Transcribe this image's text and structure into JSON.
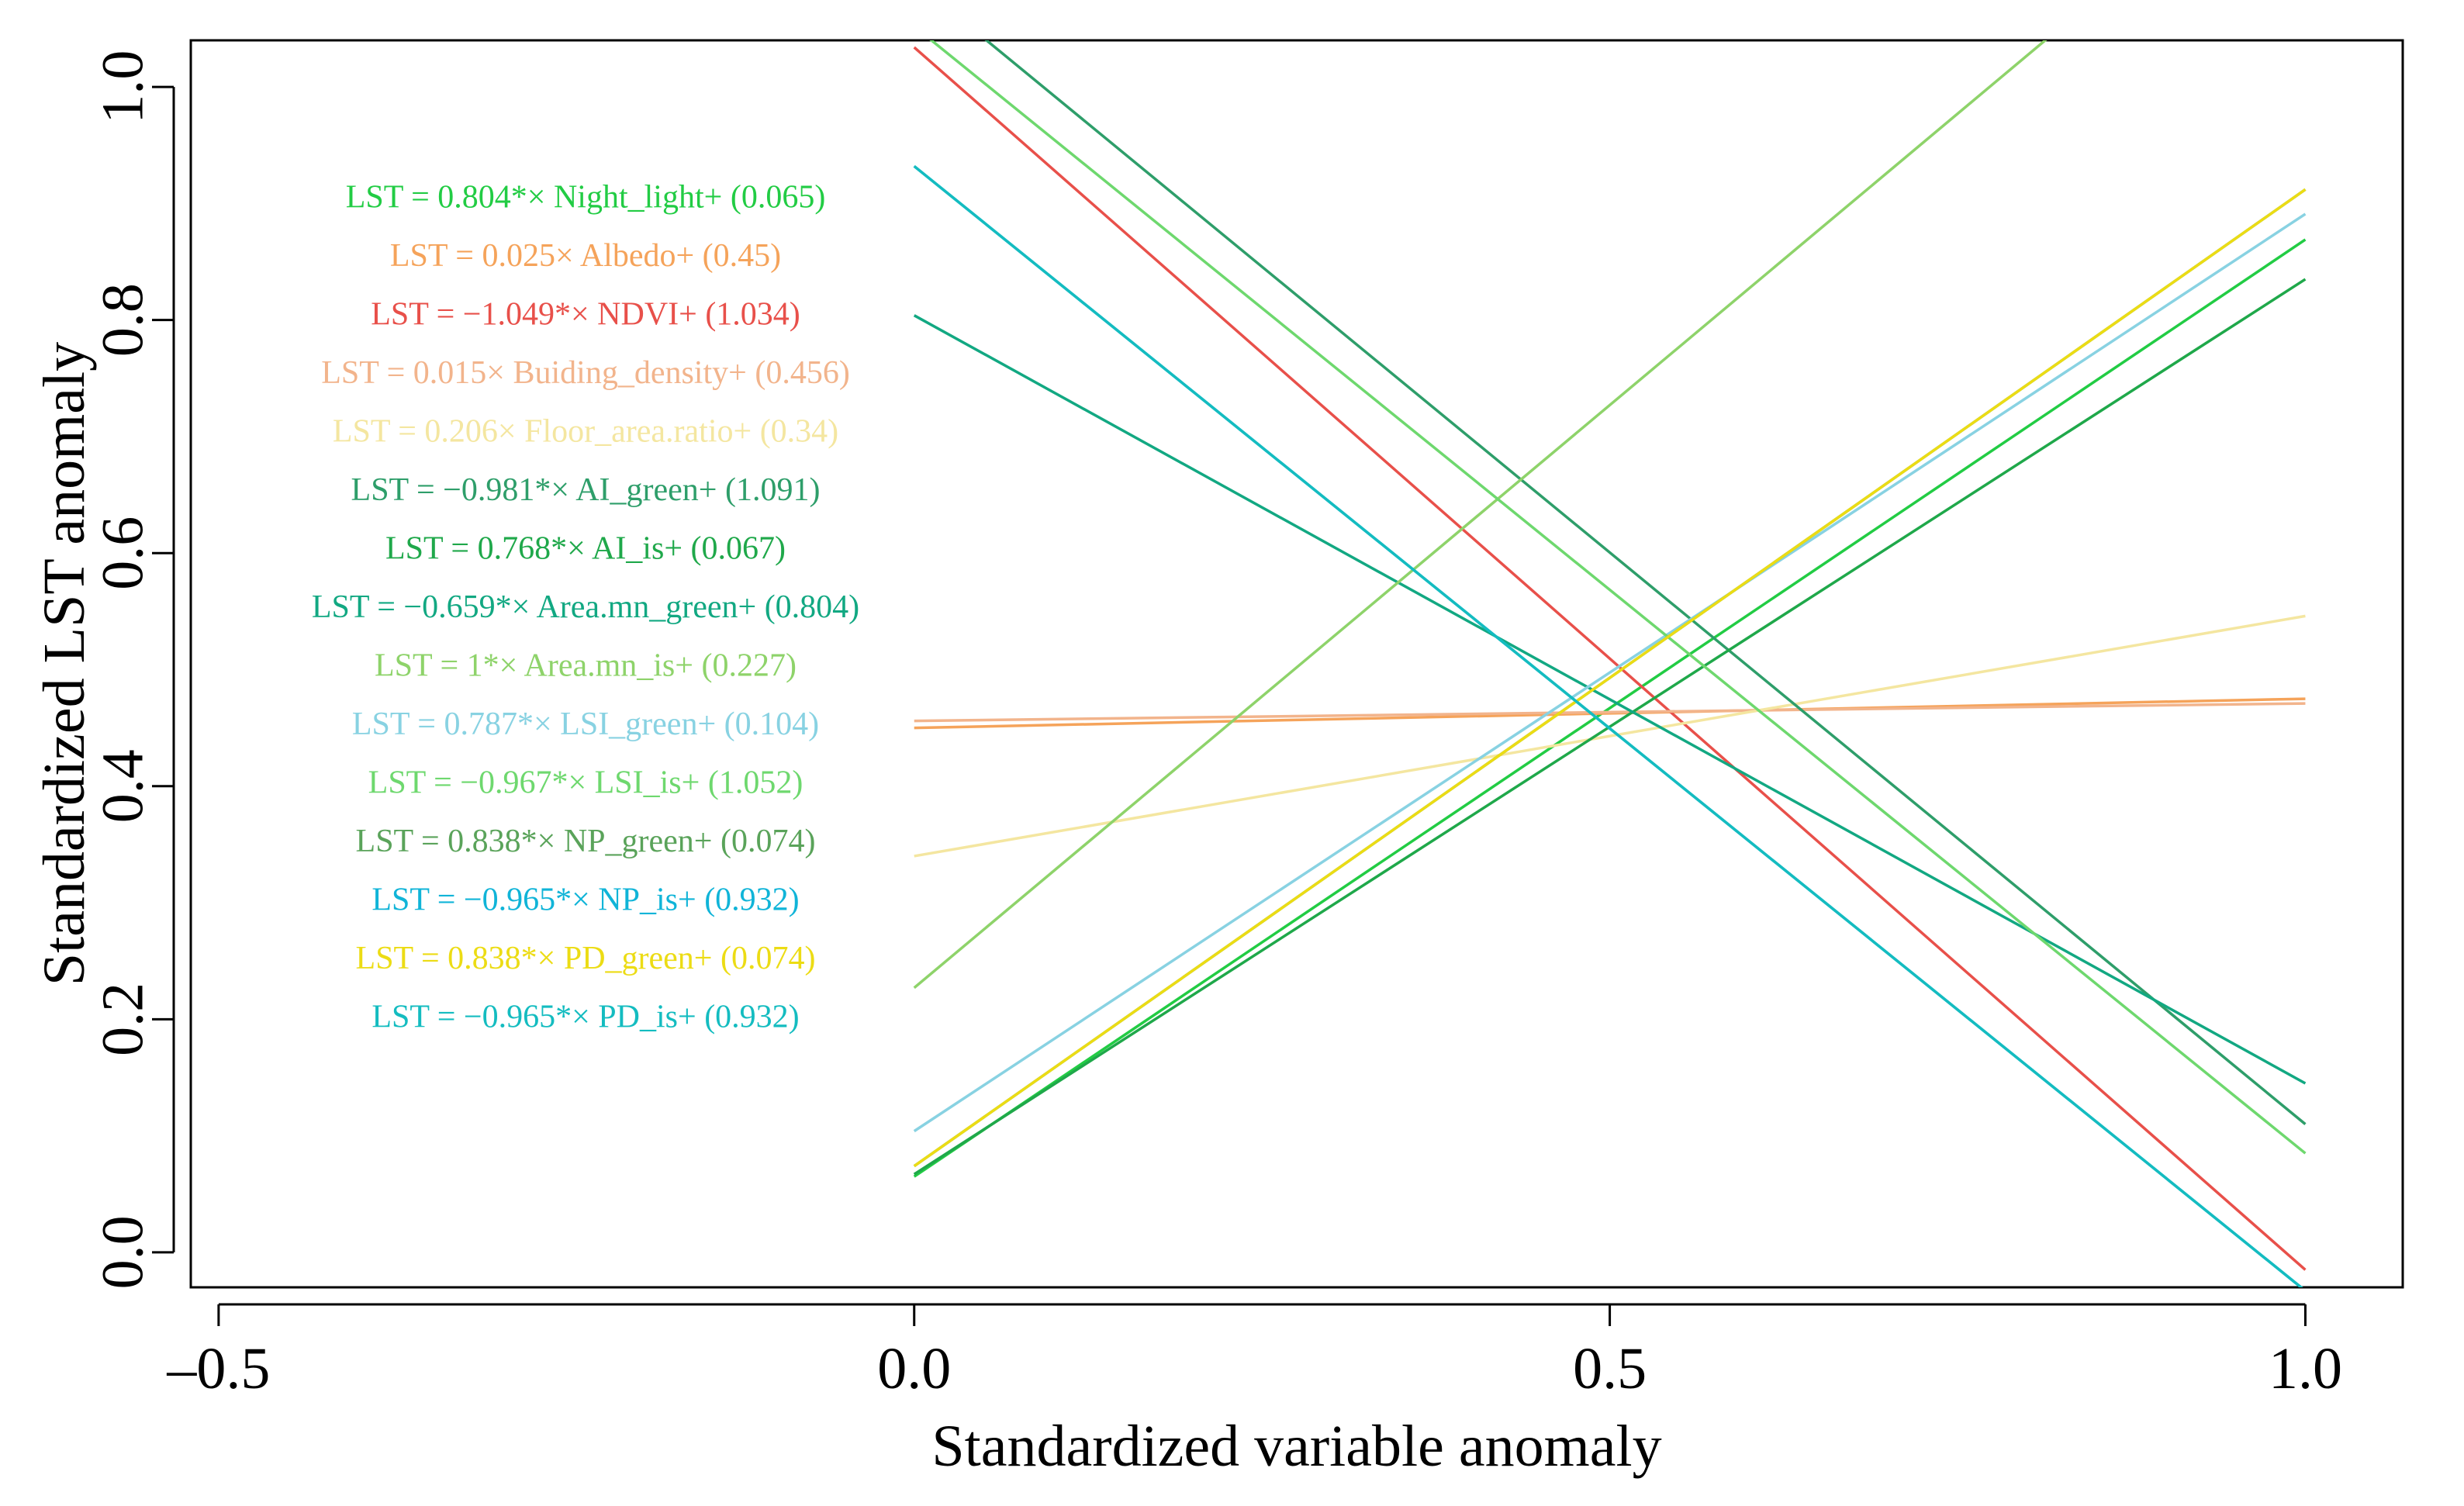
{
  "chart_data": {
    "type": "line",
    "title": "",
    "xlabel": "Standardized variable anomaly",
    "ylabel": "Standardized LST anomaly",
    "xlim": [
      -0.52,
      1.07
    ],
    "ylim": [
      -0.03,
      1.04
    ],
    "x_ticks": [
      -0.5,
      0.0,
      0.5,
      1.0
    ],
    "x_tick_labels": [
      "–0.5",
      "0.0",
      "0.5",
      "1.0"
    ],
    "y_ticks": [
      0.0,
      0.2,
      0.4,
      0.6,
      0.8,
      1.0
    ],
    "y_tick_labels": [
      "0.0",
      "0.2",
      "0.4",
      "0.6",
      "0.8",
      "1.0"
    ],
    "grid": false,
    "legend_placement": "left",
    "series": [
      {
        "equation": "LST = 0.804*× Night_light+ (0.065)",
        "slope": 0.804,
        "intercept": 0.065,
        "color": "#22cc44"
      },
      {
        "equation": "LST = 0.025× Albedo+ (0.45)",
        "slope": 0.025,
        "intercept": 0.45,
        "color": "#f5a35a"
      },
      {
        "equation": "LST = −1.049*× NDVI+ (1.034)",
        "slope": -1.049,
        "intercept": 1.034,
        "color": "#e8504a"
      },
      {
        "equation": "LST = 0.015× Buiding_density+ (0.456)",
        "slope": 0.015,
        "intercept": 0.456,
        "color": "#f2b48c"
      },
      {
        "equation": "LST = 0.206× Floor_area.ratio+ (0.34)",
        "slope": 0.206,
        "intercept": 0.34,
        "color": "#f4e6a0"
      },
      {
        "equation": "LST = −0.981*× AI_green+ (1.091)",
        "slope": -0.981,
        "intercept": 1.091,
        "color": "#2e9e6a"
      },
      {
        "equation": "LST = 0.768*× AI_is+ (0.067)",
        "slope": 0.768,
        "intercept": 0.067,
        "color": "#1fa84a"
      },
      {
        "equation": "LST = −0.659*× Area.mn_green+ (0.804)",
        "slope": -0.659,
        "intercept": 0.804,
        "color": "#12a882"
      },
      {
        "equation": "LST = 1*× Area.mn_is+ (0.227)",
        "slope": 1,
        "intercept": 0.227,
        "color": "#8ed36a"
      },
      {
        "equation": "LST = 0.787*× LSI_green+ (0.104)",
        "slope": 0.787,
        "intercept": 0.104,
        "color": "#88d2e2"
      },
      {
        "equation": "LST = −0.967*× LSI_is+ (1.052)",
        "slope": -0.967,
        "intercept": 1.052,
        "color": "#6ed86e"
      },
      {
        "equation": "LST = 0.838*× NP_green+ (0.074)",
        "slope": 0.838,
        "intercept": 0.074,
        "color": "#5aa35a"
      },
      {
        "equation": "LST = −0.965*× NP_is+ (0.932)",
        "slope": -0.965,
        "intercept": 0.932,
        "color": "#10b4d8"
      },
      {
        "equation": "LST = 0.838*× PD_green+ (0.074)",
        "slope": 0.838,
        "intercept": 0.074,
        "color": "#ecdc14"
      },
      {
        "equation": "LST = −0.965*× PD_is+ (0.932)",
        "slope": -0.965,
        "intercept": 0.932,
        "color": "#14bcc0"
      }
    ]
  }
}
